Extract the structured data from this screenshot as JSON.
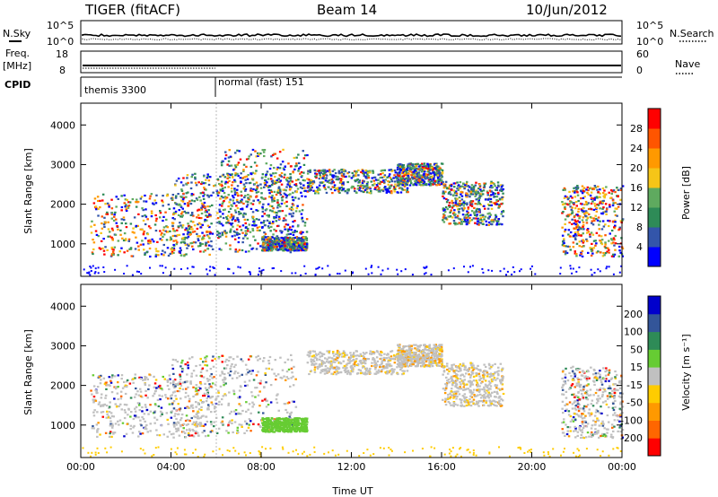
{
  "header": {
    "radar": "TIGER (fitACF)",
    "beam": "Beam 14",
    "date": "10/Jun/2012"
  },
  "summary_panels": {
    "left_labels": [
      "N.Sky",
      "Freq.",
      "[MHz]",
      "CPID"
    ],
    "right_labels": [
      "N.Search",
      "Nave"
    ],
    "nsky_ticks_left": [
      "10^5",
      "10^0"
    ],
    "nsky_ticks_right": [
      "10^5",
      "10^0"
    ],
    "freq_ticks_left": [
      "18",
      "8"
    ],
    "nave_ticks_right": [
      "60",
      "0"
    ],
    "cpid_programs": [
      {
        "name": "themis 3300",
        "start_h": 0,
        "end_h": 6
      },
      {
        "name": "normal (fast) 151",
        "start_h": 6,
        "end_h": 24
      }
    ]
  },
  "colors": {
    "power_scale": [
      "#0000ff",
      "#3355aa",
      "#2e8b57",
      "#5faa5f",
      "#f5c518",
      "#ff9900",
      "#ff5500",
      "#ff0000"
    ],
    "velocity_scale": [
      "#0000cc",
      "#335599",
      "#2e8b57",
      "#66cc33",
      "#c0c0c0",
      "#ffcc00",
      "#ff9900",
      "#ff6600",
      "#ff0000"
    ]
  },
  "chart_data": [
    {
      "type": "heatmap",
      "title": "",
      "xlabel": "Time UT",
      "ylabel": "Slant Range [km]",
      "x_ticks": [
        "00:00",
        "04:00",
        "08:00",
        "12:00",
        "16:00",
        "20:00",
        "00:00"
      ],
      "y_ticks": [
        "1000",
        "2000",
        "3000",
        "4000"
      ],
      "xlim": [
        0,
        24
      ],
      "ylim": [
        180,
        4550
      ],
      "colorbar": {
        "label": "Power [dB]",
        "ticks": [
          "4",
          "8",
          "12",
          "16",
          "20",
          "24",
          "28"
        ],
        "range": [
          0,
          32
        ]
      },
      "echo_regions": [
        {
          "t0": 0.4,
          "t1": 5.8,
          "r0": 700,
          "r1": 2300,
          "level": "high"
        },
        {
          "t0": 4.0,
          "t1": 9.5,
          "r0": 800,
          "r1": 2800,
          "level": "medium"
        },
        {
          "t0": 6.0,
          "t1": 10.0,
          "r0": 1200,
          "r1": 3400,
          "level": "medium"
        },
        {
          "t0": 10.0,
          "t1": 14.5,
          "r0": 2300,
          "r1": 2900,
          "level": "medium"
        },
        {
          "t0": 14.0,
          "t1": 16.0,
          "r0": 2500,
          "r1": 3050,
          "level": "medium"
        },
        {
          "t0": 16.0,
          "t1": 18.7,
          "r0": 1500,
          "r1": 2600,
          "level": "medium"
        },
        {
          "t0": 21.3,
          "t1": 24.0,
          "r0": 700,
          "r1": 2500,
          "level": "high"
        },
        {
          "t0": 8.0,
          "t1": 10.0,
          "r0": 850,
          "r1": 1200,
          "level": "medium"
        }
      ]
    },
    {
      "type": "heatmap",
      "title": "",
      "xlabel": "Time UT",
      "ylabel": "Slant Range [km]",
      "x_ticks": [
        "00:00",
        "04:00",
        "08:00",
        "12:00",
        "16:00",
        "20:00",
        "00:00"
      ],
      "y_ticks": [
        "1000",
        "2000",
        "3000",
        "4000"
      ],
      "xlim": [
        0,
        24
      ],
      "ylim": [
        180,
        4550
      ],
      "colorbar": {
        "label": "Velocity [m s⁻¹]",
        "ticks": [
          "200",
          "100",
          "50",
          "15",
          "-15",
          "-50",
          "-100",
          "-200"
        ],
        "range": [
          -300,
          300
        ]
      },
      "echo_regions": [
        {
          "t0": 0.4,
          "t1": 5.8,
          "r0": 700,
          "r1": 2300,
          "level": "mixed"
        },
        {
          "t0": 4.0,
          "t1": 9.5,
          "r0": 800,
          "r1": 2800,
          "level": "mixed"
        },
        {
          "t0": 10.0,
          "t1": 14.5,
          "r0": 2300,
          "r1": 2900,
          "level": "near-zero"
        },
        {
          "t0": 14.0,
          "t1": 16.0,
          "r0": 2500,
          "r1": 3050,
          "level": "near-zero"
        },
        {
          "t0": 16.0,
          "t1": 18.7,
          "r0": 1500,
          "r1": 2600,
          "level": "near-zero"
        },
        {
          "t0": 21.3,
          "t1": 24.0,
          "r0": 700,
          "r1": 2500,
          "level": "mixed"
        },
        {
          "t0": 8.0,
          "t1": 10.0,
          "r0": 850,
          "r1": 1200,
          "level": "positive"
        }
      ]
    }
  ]
}
